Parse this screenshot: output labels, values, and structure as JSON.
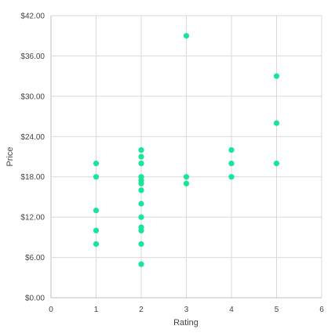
{
  "chart_data": {
    "type": "scatter",
    "xlabel": "Rating",
    "ylabel": "Price",
    "xlim": [
      0,
      6
    ],
    "ylim": [
      0,
      42
    ],
    "x_ticks": [
      "0",
      "1",
      "2",
      "3",
      "4",
      "5",
      "6"
    ],
    "y_ticks": [
      "$0.00",
      "$6.00",
      "$12.00",
      "$18.00",
      "$24.00",
      "$30.00",
      "$36.00",
      "$42.00"
    ],
    "grid": true,
    "legend": "none",
    "marker_color": "#17e69a",
    "points": [
      {
        "x": 1,
        "y": 20
      },
      {
        "x": 1,
        "y": 18
      },
      {
        "x": 1,
        "y": 13
      },
      {
        "x": 1,
        "y": 10
      },
      {
        "x": 1,
        "y": 8
      },
      {
        "x": 2,
        "y": 22
      },
      {
        "x": 2,
        "y": 21
      },
      {
        "x": 2,
        "y": 20
      },
      {
        "x": 2,
        "y": 18
      },
      {
        "x": 2,
        "y": 17.5
      },
      {
        "x": 2,
        "y": 17
      },
      {
        "x": 2,
        "y": 16
      },
      {
        "x": 2,
        "y": 14
      },
      {
        "x": 2,
        "y": 12
      },
      {
        "x": 2,
        "y": 10.5
      },
      {
        "x": 2,
        "y": 10
      },
      {
        "x": 2,
        "y": 8
      },
      {
        "x": 2,
        "y": 5
      },
      {
        "x": 3,
        "y": 39
      },
      {
        "x": 3,
        "y": 18
      },
      {
        "x": 3,
        "y": 17
      },
      {
        "x": 4,
        "y": 22
      },
      {
        "x": 4,
        "y": 20
      },
      {
        "x": 4,
        "y": 18
      },
      {
        "x": 5,
        "y": 33
      },
      {
        "x": 5,
        "y": 26
      },
      {
        "x": 5,
        "y": 20
      }
    ]
  }
}
